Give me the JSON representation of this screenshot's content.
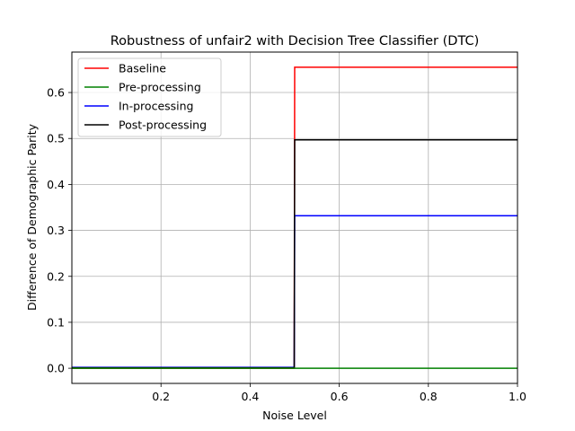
{
  "chart_data": {
    "type": "line",
    "title": "Robustness of unfair2 with Decision Tree Classifier (DTC)",
    "xlabel": "Noise Level",
    "ylabel": "Difference of Demographic Parity",
    "xlim": [
      0.0,
      1.0
    ],
    "ylim": [
      -0.033,
      0.688
    ],
    "xticks": [
      0.2,
      0.4,
      0.6,
      0.8,
      1.0
    ],
    "xtick_labels": [
      "0.2",
      "0.4",
      "0.6",
      "0.8",
      "1.0"
    ],
    "yticks": [
      0.0,
      0.1,
      0.2,
      0.3,
      0.4,
      0.5,
      0.6
    ],
    "ytick_labels": [
      "0.0",
      "0.1",
      "0.2",
      "0.3",
      "0.4",
      "0.5",
      "0.6"
    ],
    "grid": true,
    "legend_position": "top-left",
    "series": [
      {
        "name": "Baseline",
        "color": "#ff0000",
        "x": [
          0.0,
          0.499,
          0.5,
          1.0
        ],
        "y": [
          0.0,
          0.0,
          0.655,
          0.655
        ]
      },
      {
        "name": "Pre-processing",
        "color": "#008000",
        "x": [
          0.0,
          1.0
        ],
        "y": [
          0.0,
          0.0
        ]
      },
      {
        "name": "In-processing",
        "color": "#0000ff",
        "x": [
          0.0,
          0.499,
          0.5,
          1.0
        ],
        "y": [
          0.002,
          0.002,
          0.332,
          0.332
        ]
      },
      {
        "name": "Post-processing",
        "color": "#000000",
        "x": [
          0.0,
          0.499,
          0.5,
          1.0
        ],
        "y": [
          0.001,
          0.001,
          0.497,
          0.497
        ]
      }
    ]
  }
}
